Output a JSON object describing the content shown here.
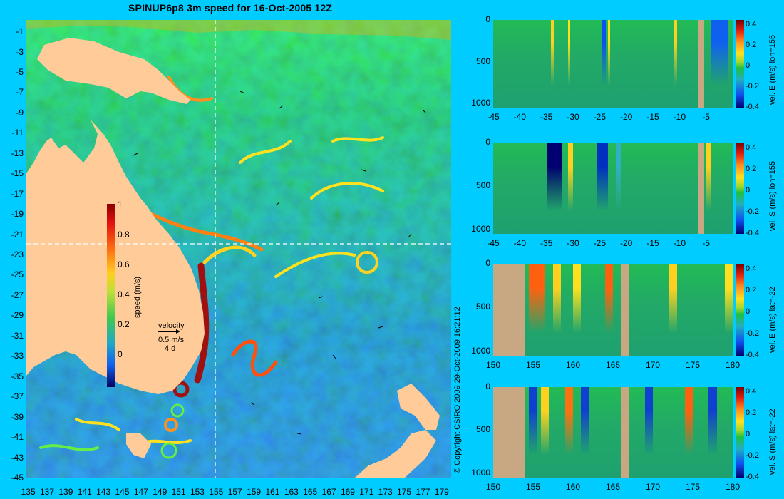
{
  "title": "SPINUP6p8 3m speed for 16-Oct-2005 12Z",
  "copyright": "© Copyright CSIRO 2009   29-Oct-2009 16:21:12",
  "colors": {
    "background": "#00ccff",
    "land": "#ffcc99",
    "section_land": "#c8a882",
    "cross_lines": "#ffffff"
  },
  "chart_data": [
    {
      "type": "heatmap",
      "title": "SPINUP6p8 3m speed for 16-Oct-2005 12Z",
      "x_ticks": [
        "135",
        "137",
        "139",
        "141",
        "143",
        "145",
        "147",
        "149",
        "151",
        "153",
        "155",
        "157",
        "159",
        "161",
        "163",
        "165",
        "167",
        "169",
        "171",
        "173",
        "175",
        "177",
        "179"
      ],
      "y_ticks": [
        "-1",
        "-3",
        "-5",
        "-7",
        "-9",
        "-11",
        "-13",
        "-15",
        "-17",
        "-19",
        "-21",
        "-23",
        "-25",
        "-27",
        "-29",
        "-31",
        "-33",
        "-35",
        "-37",
        "-39",
        "-41",
        "-43",
        "-45"
      ],
      "xlim": [
        134.8,
        180
      ],
      "ylim": [
        -45,
        0.2
      ],
      "colorbar": {
        "label": "speed (m/s)",
        "ticks": [
          "1",
          "0.8",
          "0.6",
          "0.4",
          "0.2",
          "0"
        ],
        "range": [
          -0.2,
          1
        ]
      },
      "velocity_key": {
        "title": "velocity",
        "speed": "0.5 m/s",
        "duration": "4 d"
      },
      "cross_lines": {
        "lon": 155,
        "lat": -22
      }
    },
    {
      "type": "heatmap",
      "x_ticks": [
        "-45",
        "-40",
        "-35",
        "-30",
        "-25",
        "-20",
        "-15",
        "-10",
        "-5"
      ],
      "y_ticks": [
        "0",
        "500",
        "1000"
      ],
      "xlim": [
        -45,
        0
      ],
      "ylim": [
        0,
        1050
      ],
      "colorbar": {
        "label": "vel. E (m/s) lon=155",
        "ticks": [
          "0.4",
          "0.2",
          "0",
          "-0.2",
          "-0.4"
        ],
        "range": [
          -0.4,
          0.45
        ]
      }
    },
    {
      "type": "heatmap",
      "x_ticks": [
        "-45",
        "-40",
        "-35",
        "-30",
        "-25",
        "-20",
        "-15",
        "-10",
        "-5"
      ],
      "y_ticks": [
        "0",
        "500",
        "1000"
      ],
      "xlim": [
        -45,
        0
      ],
      "ylim": [
        0,
        1050
      ],
      "colorbar": {
        "label": "vel. S (m/s) lon=155",
        "ticks": [
          "0.4",
          "0.2",
          "0",
          "-0.2",
          "-0.4"
        ],
        "range": [
          -0.4,
          0.45
        ]
      }
    },
    {
      "type": "heatmap",
      "x_ticks": [
        "150",
        "155",
        "160",
        "165",
        "170",
        "175",
        "180"
      ],
      "y_ticks": [
        "0",
        "500",
        "1000"
      ],
      "xlim": [
        150,
        180
      ],
      "ylim": [
        0,
        1050
      ],
      "colorbar": {
        "label": "vel. E (m/s) lat=-22",
        "ticks": [
          "0.4",
          "0.2",
          "0",
          "-0.2",
          "-0.4"
        ],
        "range": [
          -0.4,
          0.45
        ]
      }
    },
    {
      "type": "heatmap",
      "x_ticks": [
        "150",
        "155",
        "160",
        "165",
        "170",
        "175",
        "180"
      ],
      "y_ticks": [
        "0",
        "500",
        "1000"
      ],
      "xlim": [
        150,
        180
      ],
      "ylim": [
        0,
        1050
      ],
      "colorbar": {
        "label": "vel. S (m/s) lat=-22",
        "ticks": [
          "0.4",
          "0.2",
          "0",
          "-0.2",
          "-0.4"
        ],
        "range": [
          -0.4,
          0.45
        ]
      }
    }
  ]
}
